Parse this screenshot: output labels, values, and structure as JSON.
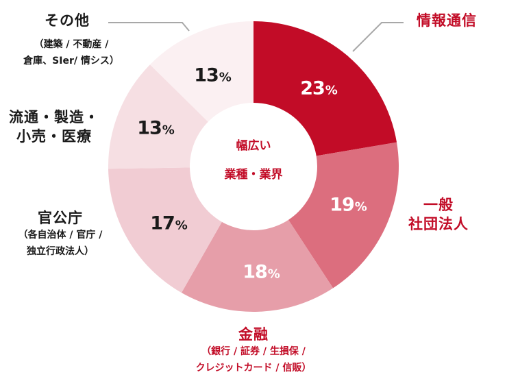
{
  "chart_data": {
    "type": "pie",
    "subtype": "donut",
    "title": "幅広い 業種・業界",
    "center_label": [
      "幅広い",
      "業種・業界"
    ],
    "unit": "%",
    "start_angle": "12 o'clock, clockwise",
    "categories": [
      "情報通信",
      "一般社団法人",
      "金融",
      "官公庁",
      "流通・製造・小売・医療",
      "その他"
    ],
    "values": [
      23,
      19,
      18,
      17,
      13,
      13
    ],
    "colors": [
      "#c20c27",
      "#dc6e7e",
      "#e69ea9",
      "#f1ccd3",
      "#f6dfe3",
      "#fbf0f2"
    ],
    "label_colors": [
      "#c20c27",
      "#c20c27",
      "#c20c27",
      "#1a1a1a",
      "#1a1a1a",
      "#1a1a1a"
    ],
    "value_label_colors": [
      "#ffffff",
      "#ffffff",
      "#ffffff",
      "#1a1a1a",
      "#1a1a1a",
      "#1a1a1a"
    ],
    "sublabels": {
      "金融": "（銀行 / 証券 / 生損保 / クレジットカード / 信販）",
      "官公庁": "（各自治体 / 官庁 / 独立行政法人）",
      "その他": "（建築 / 不動産 / 倉庫、SIer/ 情シス）"
    },
    "legend": "none (direct labels with leader lines for 情報通信 and その他)"
  },
  "center": {
    "line1": "幅広い",
    "line2": "業種・業界"
  },
  "labels": {
    "info": {
      "main": "情報通信"
    },
    "assoc": {
      "line1": "一般",
      "line2": "社団法人"
    },
    "finance": {
      "main": "金融",
      "sub1": "（銀行 / 証券 / 生損保 /",
      "sub2": "クレジットカード / 信販）"
    },
    "gov": {
      "main": "官公庁",
      "sub1": "（各自治体 / 官庁 /",
      "sub2": "独立行政法人）"
    },
    "retail": {
      "line1": "流通・製造・",
      "line2": "小売・医療"
    },
    "other": {
      "main": "その他",
      "sub1": "（建築 / 不動産 /",
      "sub2": "倉庫、SIer/ 情シス）"
    }
  },
  "percent_labels": [
    {
      "num": "23",
      "sym": "%"
    },
    {
      "num": "19",
      "sym": "%"
    },
    {
      "num": "18",
      "sym": "%"
    },
    {
      "num": "17",
      "sym": "%"
    },
    {
      "num": "13",
      "sym": "%"
    },
    {
      "num": "13",
      "sym": "%"
    }
  ],
  "leader_line_color": "#a8a8a8"
}
